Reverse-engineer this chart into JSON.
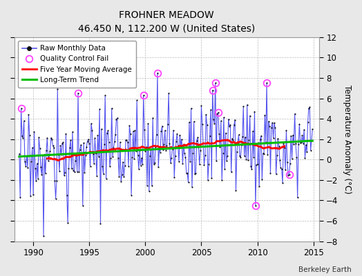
{
  "title": "FROHNER MEADOW",
  "subtitle": "46.450 N, 112.200 W (United States)",
  "ylabel": "Temperature Anomaly (°C)",
  "credit": "Berkeley Earth",
  "ylim": [
    -8,
    12
  ],
  "yticks": [
    -8,
    -6,
    -4,
    -2,
    0,
    2,
    4,
    6,
    8,
    10,
    12
  ],
  "xlim_left": 1988.3,
  "xlim_right": 2015.5,
  "xticks": [
    1990,
    1995,
    2000,
    2005,
    2010,
    2015
  ],
  "fig_bg": "#e8e8e8",
  "plot_bg": "#ffffff",
  "raw_line_color": "#5555ee",
  "raw_dot_color": "#111111",
  "ma_color": "#ff0000",
  "trend_color": "#00bb00",
  "qc_color": "#ff44ff",
  "start_year": 1988.75,
  "n_months": 315,
  "seed": 17
}
